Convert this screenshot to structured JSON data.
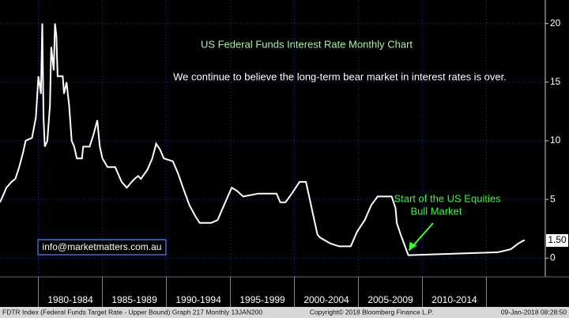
{
  "chart_data": {
    "type": "line",
    "title": "US Federal Funds Interest Rate Monthly Chart",
    "subtitle": "We continue to believe the long-term bear market in interest rates is over.",
    "annotation": [
      "Start of the US Equities",
      "Bull Market"
    ],
    "annotation_point": [
      2008.95,
      0.25
    ],
    "contact": "info@marketmatters.com.au",
    "last_label": {
      "value": 1.5,
      "label": "1.50"
    },
    "footer": [
      "FDTR Index (Federal Funds Target Rate - Upper Bound) Graph 217  Monthly 13JAN200",
      "Copyright© 2018 Bloomberg Finance L.P.",
      "09-Jan-2018 08:28:50"
    ],
    "x": [
      1977.0,
      1977.3,
      1977.5,
      1977.9,
      1978.2,
      1978.5,
      1978.8,
      1979.0,
      1979.5,
      1979.8,
      1980.0,
      1980.2,
      1980.3,
      1980.4,
      1980.5,
      1980.7,
      1980.9,
      1981.0,
      1981.2,
      1981.3,
      1981.4,
      1981.5,
      1981.9,
      1982.0,
      1982.2,
      1982.4,
      1982.6,
      1982.8,
      1983.0,
      1983.4,
      1983.5,
      1983.8,
      1984.0,
      1984.3,
      1984.6,
      1984.8,
      1985.0,
      1985.4,
      1986.0,
      1986.5,
      1986.9,
      1987.3,
      1987.5,
      1987.8,
      1988.0,
      1988.5,
      1988.9,
      1989.2,
      1989.5,
      1989.8,
      1990.5,
      1990.9,
      1991.3,
      1991.8,
      1992.3,
      1992.6,
      1993.5,
      1994.0,
      1994.4,
      1994.9,
      1995.1,
      1995.5,
      1996.0,
      1997.2,
      1998.6,
      1998.9,
      1999.3,
      1999.8,
      2000.4,
      2000.9,
      2001.1,
      2001.4,
      2001.8,
      2002.0,
      2002.8,
      2003.5,
      2004.4,
      2004.9,
      2005.5,
      2006.0,
      2006.5,
      2007.6,
      2007.9,
      2008.0,
      2008.3,
      2008.9,
      2015.9,
      2016.9,
      2017.2,
      2017.5,
      2017.9,
      2018.0
    ],
    "series": [
      {
        "name": "FDTR",
        "color": "#ffffff",
        "values": [
          4.75,
          5.5,
          6.0,
          6.5,
          6.75,
          7.75,
          9.0,
          10.0,
          10.25,
          12.0,
          15.5,
          14.0,
          20.0,
          12.0,
          9.5,
          10.0,
          13.0,
          18.0,
          16.0,
          20.0,
          19.0,
          15.5,
          15.5,
          14.0,
          15.0,
          13.0,
          10.0,
          9.5,
          8.5,
          8.5,
          9.5,
          9.5,
          9.5,
          10.5,
          11.75,
          9.5,
          8.5,
          7.75,
          7.75,
          6.5,
          6.0,
          6.5,
          6.75,
          7.0,
          6.75,
          7.5,
          8.5,
          9.75,
          9.25,
          8.5,
          8.25,
          7.25,
          6.0,
          4.5,
          3.5,
          3.0,
          3.0,
          3.25,
          4.25,
          5.5,
          6.0,
          5.75,
          5.25,
          5.5,
          5.5,
          4.75,
          4.75,
          5.5,
          6.5,
          6.5,
          5.5,
          4.0,
          2.0,
          1.75,
          1.25,
          1.0,
          1.0,
          2.25,
          3.25,
          4.5,
          5.25,
          5.25,
          4.25,
          3.0,
          2.0,
          0.25,
          0.5,
          0.75,
          1.0,
          1.25,
          1.5,
          1.5
        ]
      }
    ],
    "xlim": [
      1977,
      2019.6
    ],
    "xticks": [
      {
        "value": 1982.5,
        "label": "1980-1984"
      },
      {
        "value": 1987.5,
        "label": "1985-1989"
      },
      {
        "value": 1992.5,
        "label": "1990-1994"
      },
      {
        "value": 1997.5,
        "label": "1995-1999"
      },
      {
        "value": 2002.5,
        "label": "2000-2004"
      },
      {
        "value": 2007.5,
        "label": "2005-2009"
      },
      {
        "value": 2012.5,
        "label": "2010-2014"
      }
    ],
    "ylim": [
      -1.6,
      22
    ],
    "yticks": [
      0,
      5,
      10,
      15,
      20
    ],
    "grid": true
  }
}
